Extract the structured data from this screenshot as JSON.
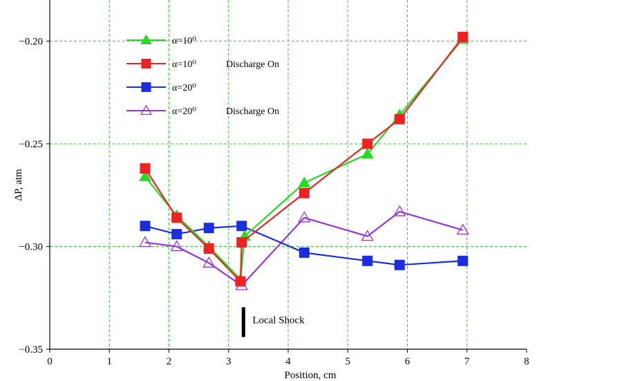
{
  "chart_data": {
    "type": "line",
    "title": "",
    "xlabel": "Position, cm",
    "ylabel": "ΔP, atm",
    "xlim": [
      0,
      8
    ],
    "ylim": [
      -0.35,
      -0.18
    ],
    "xticks": [
      0,
      1,
      2,
      3,
      4,
      5,
      6,
      7,
      8
    ],
    "xtick_labels": [
      "0",
      "1",
      "2",
      "3",
      "4",
      "5",
      "6",
      "7",
      "8"
    ],
    "yticks": [
      -0.35,
      -0.3,
      -0.25,
      -0.2
    ],
    "ytick_labels": [
      "−0.35",
      "−0.30",
      "−0.25",
      "−0.20"
    ],
    "grid": true,
    "legend_position": "top-left",
    "series": [
      {
        "name": "α=10⁰",
        "extra_label": "",
        "color": "#22dd22",
        "marker": "triangle-filled",
        "x": [
          1.6,
          2.13,
          2.67,
          3.2,
          3.27,
          4.27,
          5.33,
          5.87,
          6.93
        ],
        "y": [
          -0.266,
          -0.285,
          -0.3,
          -0.316,
          -0.295,
          -0.269,
          -0.255,
          -0.236,
          -0.199
        ]
      },
      {
        "name": "α=10⁰",
        "extra_label": "Discharge On",
        "color": "#ee2222",
        "marker": "square-filled",
        "x": [
          1.6,
          2.13,
          2.67,
          3.2,
          3.22,
          4.27,
          5.33,
          5.87,
          6.93
        ],
        "y": [
          -0.262,
          -0.286,
          -0.301,
          -0.317,
          -0.298,
          -0.274,
          -0.25,
          -0.238,
          -0.198
        ]
      },
      {
        "name": "α=20⁰",
        "extra_label": "",
        "color": "#1a2ee0",
        "marker": "square-filled",
        "x": [
          1.6,
          2.13,
          2.67,
          3.22,
          4.27,
          5.33,
          5.87,
          6.93
        ],
        "y": [
          -0.29,
          -0.294,
          -0.291,
          -0.29,
          -0.303,
          -0.307,
          -0.309,
          -0.307
        ]
      },
      {
        "name": "α=20⁰",
        "extra_label": "Discharge On",
        "color": "#9933dd",
        "marker": "triangle-open",
        "x": [
          1.6,
          2.13,
          2.67,
          3.22,
          4.27,
          5.33,
          5.87,
          6.93
        ],
        "y": [
          -0.298,
          -0.3,
          -0.308,
          -0.319,
          -0.286,
          -0.295,
          -0.283,
          -0.292
        ]
      }
    ],
    "annotations": [
      {
        "text": "Local Shock",
        "x": 3.25,
        "y": -0.338
      }
    ]
  }
}
